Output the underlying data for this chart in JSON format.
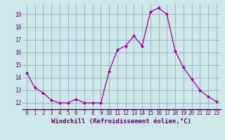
{
  "x": [
    0,
    1,
    2,
    3,
    4,
    5,
    6,
    7,
    8,
    9,
    10,
    11,
    12,
    13,
    14,
    15,
    16,
    17,
    18,
    19,
    20,
    21,
    22,
    23
  ],
  "y": [
    14.4,
    13.2,
    12.8,
    12.2,
    12.0,
    12.0,
    12.3,
    12.0,
    12.0,
    12.0,
    14.5,
    16.2,
    16.5,
    17.3,
    16.5,
    19.2,
    19.5,
    19.0,
    16.1,
    14.8,
    13.9,
    13.0,
    12.5,
    12.1
  ],
  "line_color": "#990099",
  "marker": "D",
  "marker_size": 2.0,
  "bg_color": "#cce8e8",
  "grid_color": "#9999bb",
  "xlabel": "Windchill (Refroidissement éolien,°C)",
  "xlabel_color": "#660066",
  "tick_color": "#660066",
  "axis_line_color": "#660066",
  "ylim": [
    11.5,
    19.8
  ],
  "yticks": [
    12,
    13,
    14,
    15,
    16,
    17,
    18,
    19
  ],
  "xticks": [
    0,
    1,
    2,
    3,
    4,
    5,
    6,
    7,
    8,
    9,
    10,
    11,
    12,
    13,
    14,
    15,
    16,
    17,
    18,
    19,
    20,
    21,
    22,
    23
  ],
  "tick_fontsize": 5.5,
  "xlabel_fontsize": 6.5
}
